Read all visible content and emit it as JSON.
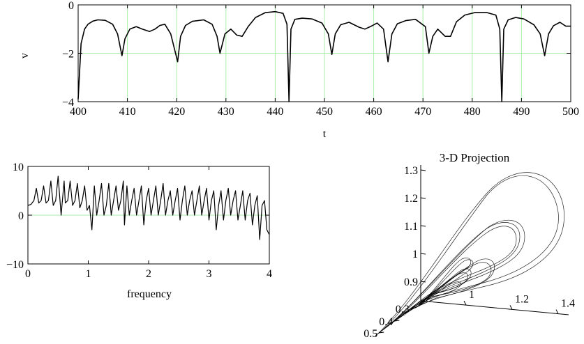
{
  "chart_data": [
    {
      "type": "line",
      "title": "",
      "xlabel": "t",
      "ylabel": "v",
      "xlim": [
        400,
        500
      ],
      "ylim": [
        -4,
        0
      ],
      "x_ticks": [
        "400",
        "410",
        "420",
        "430",
        "440",
        "450",
        "460",
        "470",
        "480",
        "490",
        "500"
      ],
      "y_ticks": [
        "0",
        "−2",
        "−4"
      ],
      "grid": true,
      "series": [
        {
          "x": [
            400,
            400.6,
            401.3,
            402,
            403,
            404,
            405.5,
            407,
            408,
            408.9,
            409.5,
            410.5,
            411.8,
            413,
            414.5,
            415.6,
            416.6,
            417.6,
            418.8,
            420.2,
            420.8,
            421.8,
            423.2,
            425.5,
            427.2,
            428.2,
            428.8,
            429.8,
            431,
            432.2,
            433.3,
            434.5,
            436,
            438,
            440,
            441.6,
            442.4,
            442.8,
            443.2,
            444,
            445.5,
            447.5,
            449.5,
            450.8,
            451.5,
            452.2,
            453.3,
            455,
            457,
            458.2,
            459.5,
            460.7,
            462,
            462.9,
            463.7,
            464.8,
            466.5,
            468.5,
            470.5,
            471.2,
            472,
            473,
            474.5,
            475.6,
            476.8,
            478.5,
            480.5,
            483,
            484.8,
            485.6,
            486,
            486.4,
            487.3,
            488.8,
            490.5,
            492.5,
            493.8,
            494.7,
            495.5,
            496.5,
            497.8,
            499,
            500
          ],
          "values": [
            -3.9,
            -1.6,
            -1.0,
            -0.8,
            -0.67,
            -0.62,
            -0.64,
            -0.8,
            -1.2,
            -2.1,
            -1.4,
            -1.0,
            -0.9,
            -1.0,
            -1.1,
            -1.0,
            -0.85,
            -0.8,
            -1.2,
            -2.35,
            -1.3,
            -0.85,
            -0.68,
            -0.62,
            -0.8,
            -1.3,
            -2.0,
            -1.2,
            -1.0,
            -1.25,
            -1.3,
            -0.9,
            -0.52,
            -0.32,
            -0.28,
            -0.35,
            -0.8,
            -4.05,
            -1.0,
            -0.6,
            -0.55,
            -0.58,
            -0.75,
            -1.2,
            -2.05,
            -1.2,
            -0.82,
            -0.72,
            -0.92,
            -1.0,
            -0.88,
            -0.75,
            -1.0,
            -2.35,
            -1.2,
            -0.78,
            -0.65,
            -0.6,
            -0.9,
            -2.0,
            -1.3,
            -1.0,
            -1.3,
            -1.3,
            -0.7,
            -0.42,
            -0.32,
            -0.32,
            -0.42,
            -1.0,
            -4.05,
            -1.0,
            -0.62,
            -0.52,
            -0.58,
            -0.82,
            -1.2,
            -2.1,
            -1.2,
            -0.86,
            -0.72,
            -0.88,
            -0.88
          ]
        }
      ]
    },
    {
      "type": "line",
      "title": "",
      "xlabel": "frequency",
      "ylabel": "",
      "xlim": [
        0,
        4
      ],
      "ylim": [
        -10,
        10
      ],
      "x_ticks": [
        "0",
        "1",
        "2",
        "3",
        "4"
      ],
      "y_ticks": [
        "10",
        "0",
        "−10"
      ],
      "grid": false,
      "zero_line": true,
      "series": [
        {
          "x": [
            0,
            0.05,
            0.1,
            0.14,
            0.18,
            0.22,
            0.26,
            0.3,
            0.34,
            0.38,
            0.42,
            0.46,
            0.5,
            0.55,
            0.6,
            0.62,
            0.66,
            0.7,
            0.74,
            0.78,
            0.82,
            0.86,
            0.9,
            0.94,
            0.98,
            1.02,
            1.06,
            1.1,
            1.14,
            1.18,
            1.22,
            1.26,
            1.3,
            1.34,
            1.38,
            1.42,
            1.46,
            1.5,
            1.54,
            1.58,
            1.6,
            1.64,
            1.68,
            1.72,
            1.76,
            1.8,
            1.84,
            1.88,
            1.92,
            1.96,
            2.0,
            2.04,
            2.08,
            2.12,
            2.16,
            2.2,
            2.24,
            2.28,
            2.32,
            2.36,
            2.4,
            2.44,
            2.48,
            2.52,
            2.56,
            2.6,
            2.64,
            2.68,
            2.72,
            2.76,
            2.8,
            2.84,
            2.88,
            2.92,
            2.96,
            3.0,
            3.04,
            3.08,
            3.12,
            3.16,
            3.2,
            3.24,
            3.28,
            3.32,
            3.36,
            3.4,
            3.44,
            3.48,
            3.52,
            3.56,
            3.6,
            3.64,
            3.68,
            3.72,
            3.76,
            3.8,
            3.84,
            3.88,
            3.92,
            3.96,
            4.0
          ],
          "values": [
            2,
            2.2,
            3,
            5.5,
            2.5,
            3,
            6,
            2.5,
            3,
            7,
            2,
            3,
            8,
            0,
            7,
            2.5,
            3,
            7,
            2,
            3,
            6.5,
            1.5,
            3,
            6,
            1,
            2,
            -3,
            6,
            0,
            3,
            6.5,
            0,
            2,
            6.5,
            0,
            3,
            6,
            1,
            3,
            7,
            -2,
            6,
            0,
            3,
            5.5,
            0,
            3,
            6,
            -2,
            3,
            5.5,
            0,
            3,
            6,
            0,
            3,
            6.5,
            0,
            3,
            5,
            0,
            3,
            5.5,
            -1,
            3,
            6,
            0,
            3,
            5,
            0,
            3,
            6,
            0,
            3,
            5.5,
            -1,
            3,
            5,
            -3,
            2,
            5,
            -1,
            3,
            5.5,
            0,
            3,
            5,
            -1,
            2,
            5,
            -1,
            3,
            4.5,
            -2,
            2,
            4,
            -5,
            2,
            3,
            -3,
            -4
          ]
        }
      ]
    },
    {
      "type": "line",
      "title": "3-D Projection",
      "xlabel": "",
      "ylabel": "",
      "axis_ticks": {
        "vertical": [
          "1.3",
          "1.2",
          "1.1",
          "1",
          "0.9"
        ],
        "right": [
          "1",
          "1.2",
          "1.4"
        ],
        "depth": [
          "0.3",
          "0.4",
          "0.5"
        ]
      },
      "description_free": true,
      "series": [
        {
          "x": [
            0.95,
            1.05,
            1.2,
            1.32,
            1.35,
            1.25,
            1.1,
            0.95,
            0.9,
            0.95
          ],
          "y": [
            0.9,
            0.95,
            1.05,
            1.2,
            1.28,
            1.3,
            1.22,
            1.05,
            0.93,
            0.9
          ],
          "values": [
            0.35,
            0.4,
            0.45,
            0.45,
            0.4,
            0.35,
            0.3,
            0.3,
            0.35,
            0.35
          ]
        }
      ]
    }
  ]
}
